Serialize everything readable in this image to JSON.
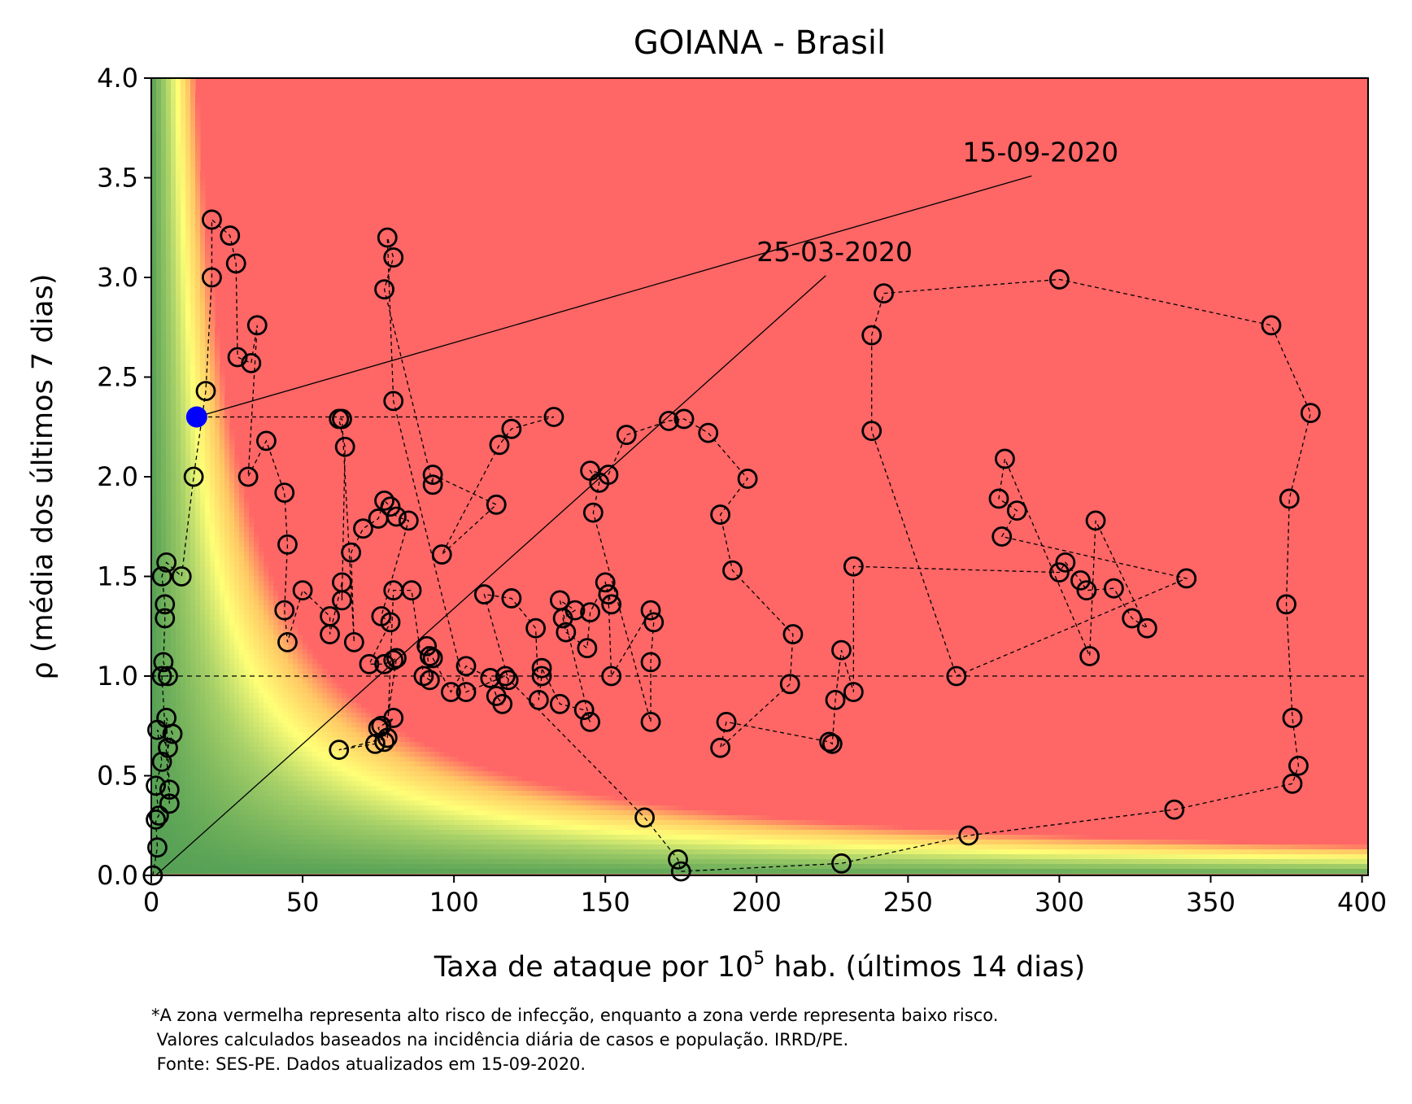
{
  "chart_data": {
    "type": "scatter",
    "title": "GOIANA - Brasil",
    "xlabel_prefix": "Taxa de ataque por 10",
    "xlabel_sup": "5",
    "xlabel_suffix": " hab. (últimos 14 dias)",
    "ylabel": "ρ (média dos últimos 7 dias)",
    "xlim": [
      0,
      402
    ],
    "ylim": [
      0,
      4.0
    ],
    "xticks": [
      0,
      50,
      100,
      150,
      200,
      250,
      300,
      350,
      400
    ],
    "yticks": [
      "0.0",
      "0.5",
      "1.0",
      "1.5",
      "2.0",
      "2.5",
      "3.0",
      "3.5",
      "4.0"
    ],
    "reference_line_y": 1.0,
    "grid": false,
    "colors": {
      "high_risk": "#ff6666",
      "mid": "#ffff77",
      "low_risk": "#55aa55",
      "last_point": "#0000ff"
    },
    "annotations": [
      {
        "text": "25-03-2020",
        "x": 200,
        "y": 3.05,
        "target": [
          1.5,
          0.0
        ]
      },
      {
        "text": "15-09-2020",
        "x": 268,
        "y": 3.55,
        "target": [
          15,
          2.3
        ]
      }
    ],
    "points": [
      [
        0.5,
        0.0
      ],
      [
        2,
        0.14
      ],
      [
        1.5,
        0.28
      ],
      [
        2.5,
        0.3
      ],
      [
        1.5,
        0.45
      ],
      [
        3.5,
        0.57
      ],
      [
        2,
        0.73
      ],
      [
        5.5,
        0.64
      ],
      [
        7,
        0.71
      ],
      [
        5,
        0.79
      ],
      [
        6,
        0.43
      ],
      [
        6,
        0.36
      ],
      [
        3.5,
        1.0
      ],
      [
        5.5,
        1.0
      ],
      [
        4,
        1.07
      ],
      [
        4.5,
        1.29
      ],
      [
        4.5,
        1.36
      ],
      [
        3.5,
        1.5
      ],
      [
        5,
        1.57
      ],
      [
        10,
        1.5
      ],
      [
        14,
        2.0
      ],
      [
        18,
        2.43
      ],
      [
        20,
        3.0
      ],
      [
        20,
        3.29
      ],
      [
        26,
        3.21
      ],
      [
        28,
        3.07
      ],
      [
        28.5,
        2.6
      ],
      [
        33,
        2.57
      ],
      [
        35,
        2.76
      ],
      [
        32,
        2.0
      ],
      [
        38,
        2.18
      ],
      [
        44,
        1.92
      ],
      [
        45,
        1.66
      ],
      [
        44,
        1.33
      ],
      [
        45,
        1.17
      ],
      [
        50,
        1.43
      ],
      [
        59,
        1.3
      ],
      [
        59,
        1.21
      ],
      [
        63,
        1.47
      ],
      [
        63,
        1.38
      ],
      [
        64,
        2.15
      ],
      [
        62,
        2.29
      ],
      [
        63,
        2.29
      ],
      [
        67,
        1.17
      ],
      [
        66,
        1.62
      ],
      [
        70,
        1.74
      ],
      [
        75,
        1.79
      ],
      [
        77,
        1.88
      ],
      [
        79,
        1.85
      ],
      [
        81,
        1.8
      ],
      [
        85,
        1.78
      ],
      [
        76,
        1.3
      ],
      [
        79,
        1.27
      ],
      [
        72,
        1.06
      ],
      [
        77,
        1.06
      ],
      [
        80,
        1.08
      ],
      [
        81,
        1.09
      ],
      [
        77,
        0.67
      ],
      [
        75,
        0.74
      ],
      [
        76,
        0.75
      ],
      [
        80,
        0.79
      ],
      [
        74,
        0.66
      ],
      [
        62,
        0.63
      ],
      [
        78,
        0.69
      ],
      [
        80,
        1.43
      ],
      [
        86,
        1.43
      ],
      [
        90,
        1.0
      ],
      [
        92,
        0.98
      ],
      [
        91,
        1.15
      ],
      [
        92,
        1.1
      ],
      [
        93,
        1.09
      ],
      [
        99,
        0.92
      ],
      [
        104,
        1.05
      ],
      [
        112,
        0.99
      ],
      [
        114,
        0.9
      ],
      [
        116,
        0.86
      ],
      [
        118,
        0.98
      ],
      [
        110,
        1.41
      ],
      [
        119,
        1.39
      ],
      [
        127,
        1.24
      ],
      [
        128,
        0.88
      ],
      [
        129,
        1.0
      ],
      [
        129,
        1.04
      ],
      [
        135,
        0.86
      ],
      [
        143,
        0.83
      ],
      [
        145,
        0.77
      ],
      [
        135,
        1.38
      ],
      [
        140,
        1.33
      ],
      [
        136,
        1.29
      ],
      [
        137,
        1.22
      ],
      [
        144,
        1.14
      ],
      [
        145,
        1.32
      ],
      [
        150,
        1.47
      ],
      [
        152,
        1.36
      ],
      [
        151,
        1.41
      ],
      [
        152,
        1.0
      ],
      [
        165,
        1.33
      ],
      [
        166,
        1.27
      ],
      [
        165,
        1.07
      ],
      [
        165,
        0.77
      ],
      [
        146,
        1.82
      ],
      [
        148,
        1.97
      ],
      [
        145,
        2.03
      ],
      [
        151,
        2.01
      ],
      [
        157,
        2.21
      ],
      [
        171,
        2.28
      ],
      [
        176,
        2.29
      ],
      [
        184,
        2.22
      ],
      [
        197,
        1.99
      ],
      [
        188,
        1.81
      ],
      [
        192,
        1.53
      ],
      [
        212,
        1.21
      ],
      [
        211,
        0.96
      ],
      [
        188,
        0.64
      ],
      [
        190,
        0.77
      ],
      [
        224,
        0.67
      ],
      [
        225,
        0.66
      ],
      [
        226,
        0.88
      ],
      [
        228,
        1.13
      ],
      [
        232,
        0.92
      ],
      [
        232,
        1.55
      ],
      [
        300,
        1.52
      ],
      [
        302,
        1.57
      ],
      [
        307,
        1.48
      ],
      [
        309,
        1.43
      ],
      [
        318,
        1.44
      ],
      [
        324,
        1.29
      ],
      [
        329,
        1.24
      ],
      [
        312,
        1.78
      ],
      [
        310,
        1.1
      ],
      [
        282,
        2.09
      ],
      [
        280,
        1.89
      ],
      [
        286,
        1.83
      ],
      [
        281,
        1.7
      ],
      [
        342,
        1.49
      ],
      [
        266,
        1.0
      ],
      [
        238,
        2.23
      ],
      [
        238,
        2.71
      ],
      [
        242,
        2.92
      ],
      [
        300,
        2.99
      ],
      [
        370,
        2.76
      ],
      [
        383,
        2.32
      ],
      [
        376,
        1.89
      ],
      [
        375,
        1.36
      ],
      [
        377,
        0.79
      ],
      [
        379,
        0.55
      ],
      [
        377,
        0.46
      ],
      [
        338,
        0.33
      ],
      [
        270,
        0.2
      ],
      [
        228,
        0.06
      ],
      [
        175,
        0.02
      ],
      [
        174,
        0.08
      ],
      [
        163,
        0.29
      ],
      [
        117,
        1.0
      ],
      [
        104,
        0.92
      ],
      [
        80,
        2.38
      ],
      [
        78,
        3.2
      ],
      [
        80,
        3.1
      ],
      [
        77,
        2.94
      ],
      [
        93,
        1.96
      ],
      [
        93,
        2.01
      ],
      [
        114,
        1.86
      ],
      [
        96,
        1.61
      ],
      [
        115,
        2.16
      ],
      [
        119,
        2.24
      ],
      [
        133,
        2.3
      ],
      [
        15,
        2.3
      ]
    ],
    "last_point": [
      15,
      2.3
    ]
  },
  "footnote": {
    "line1": "*A zona vermelha representa alto risco de infecção, enquanto a zona verde representa baixo risco.",
    "line2": " Valores calculados baseados na incidência diária de casos e população. IRRD/PE.",
    "line3": " Fonte: SES-PE. Dados atualizados em 15-09-2020."
  }
}
